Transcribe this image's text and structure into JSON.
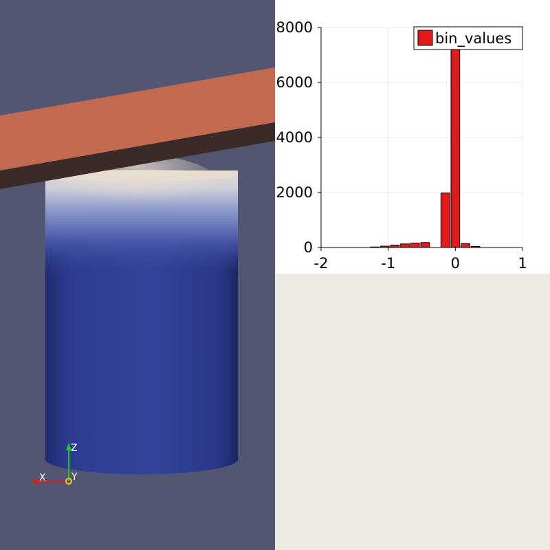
{
  "render_view": {
    "background": "#525670",
    "beam_color": "#c26a50",
    "beam_shadow": "#3a2a28",
    "cylinder_color": "#2e3d8f",
    "orientation_axes": {
      "x_label": "X",
      "y_label": "Y",
      "z_label": "Z",
      "x_color": "#e01b1b",
      "y_color": "#e0d020",
      "z_color": "#1ec81e"
    }
  },
  "chart_data": {
    "type": "bar",
    "legend": {
      "label": "bin_values",
      "placement": "top-right",
      "color": "#e31a1c"
    },
    "xlim": [
      -2,
      1
    ],
    "ylim": [
      0,
      8000
    ],
    "x_ticks": [
      "-2",
      "-1",
      "0",
      "1"
    ],
    "y_ticks": [
      "0",
      "2000",
      "4000",
      "6000",
      "8000"
    ],
    "bin_width": 0.15,
    "bins": [
      {
        "x": -1.2,
        "value": 20
      },
      {
        "x": -1.05,
        "value": 50
      },
      {
        "x": -0.9,
        "value": 90
      },
      {
        "x": -0.75,
        "value": 130
      },
      {
        "x": -0.6,
        "value": 160
      },
      {
        "x": -0.45,
        "value": 180
      },
      {
        "x": -0.15,
        "value": 1980
      },
      {
        "x": 0.0,
        "value": 7200
      },
      {
        "x": 0.15,
        "value": 140
      },
      {
        "x": 0.3,
        "value": 40
      }
    ],
    "grid": true
  }
}
